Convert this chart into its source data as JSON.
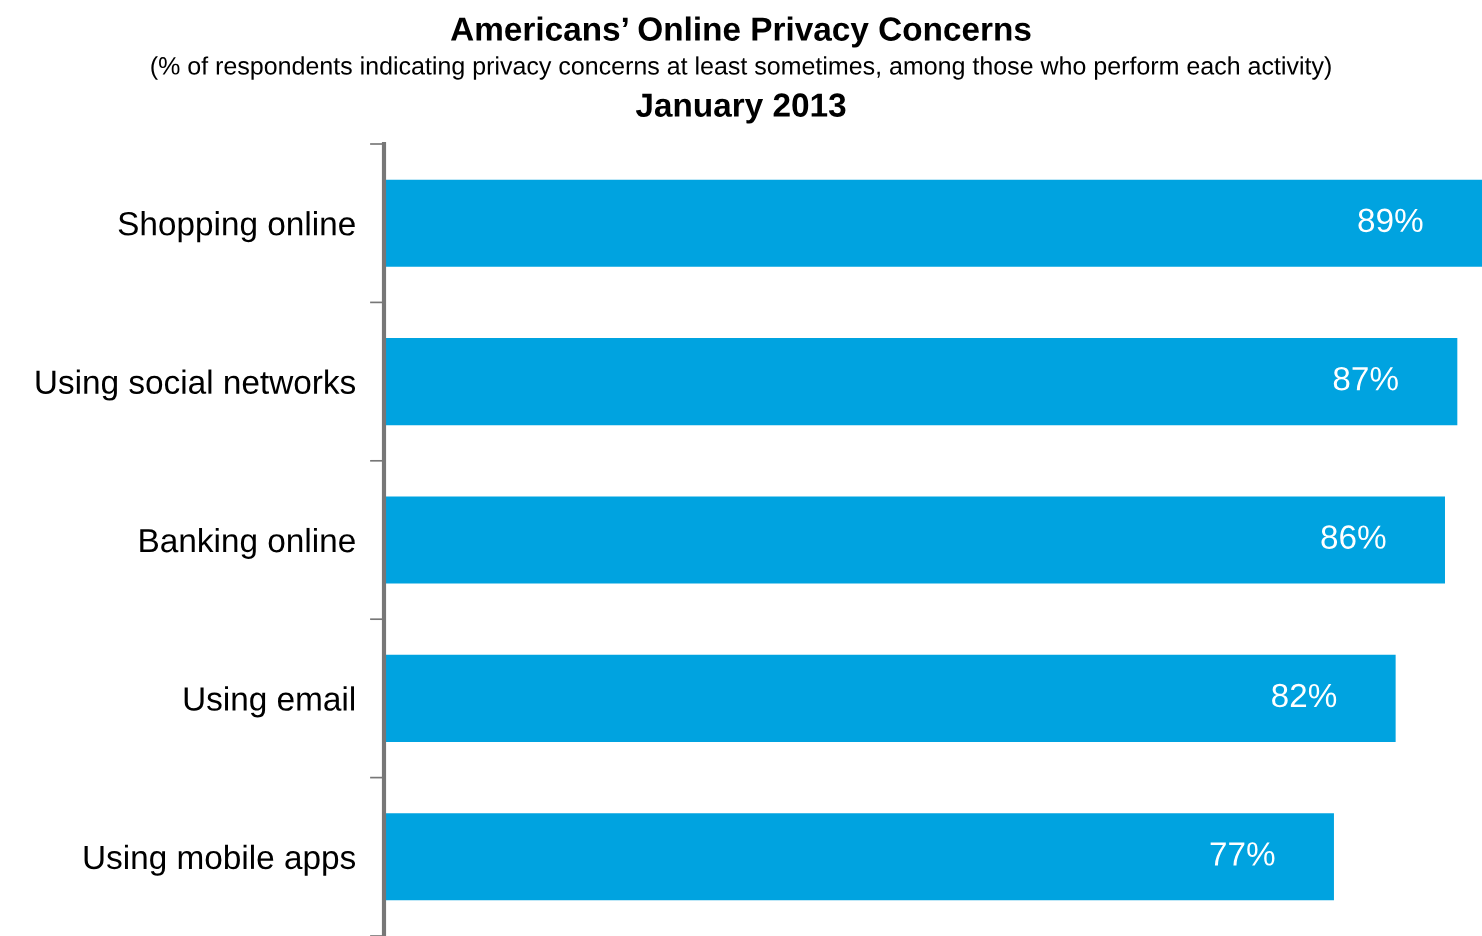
{
  "chart_data": {
    "type": "bar",
    "orientation": "horizontal",
    "title": "Americans’ Online Privacy Concerns",
    "subtitle": "(% of respondents indicating privacy concerns at least sometimes, among those who perform each activity)",
    "annotations": [
      "January 2013"
    ],
    "categories": [
      "Shopping online",
      "Using social networks",
      "Banking online",
      "Using email",
      "Using mobile apps"
    ],
    "values": [
      89,
      87,
      86,
      82,
      77
    ],
    "value_labels": [
      "89%",
      "87%",
      "86%",
      "82%",
      "77%"
    ],
    "color": "#00a3e0",
    "tick_labels": "y",
    "grid": false,
    "legend": false
  }
}
